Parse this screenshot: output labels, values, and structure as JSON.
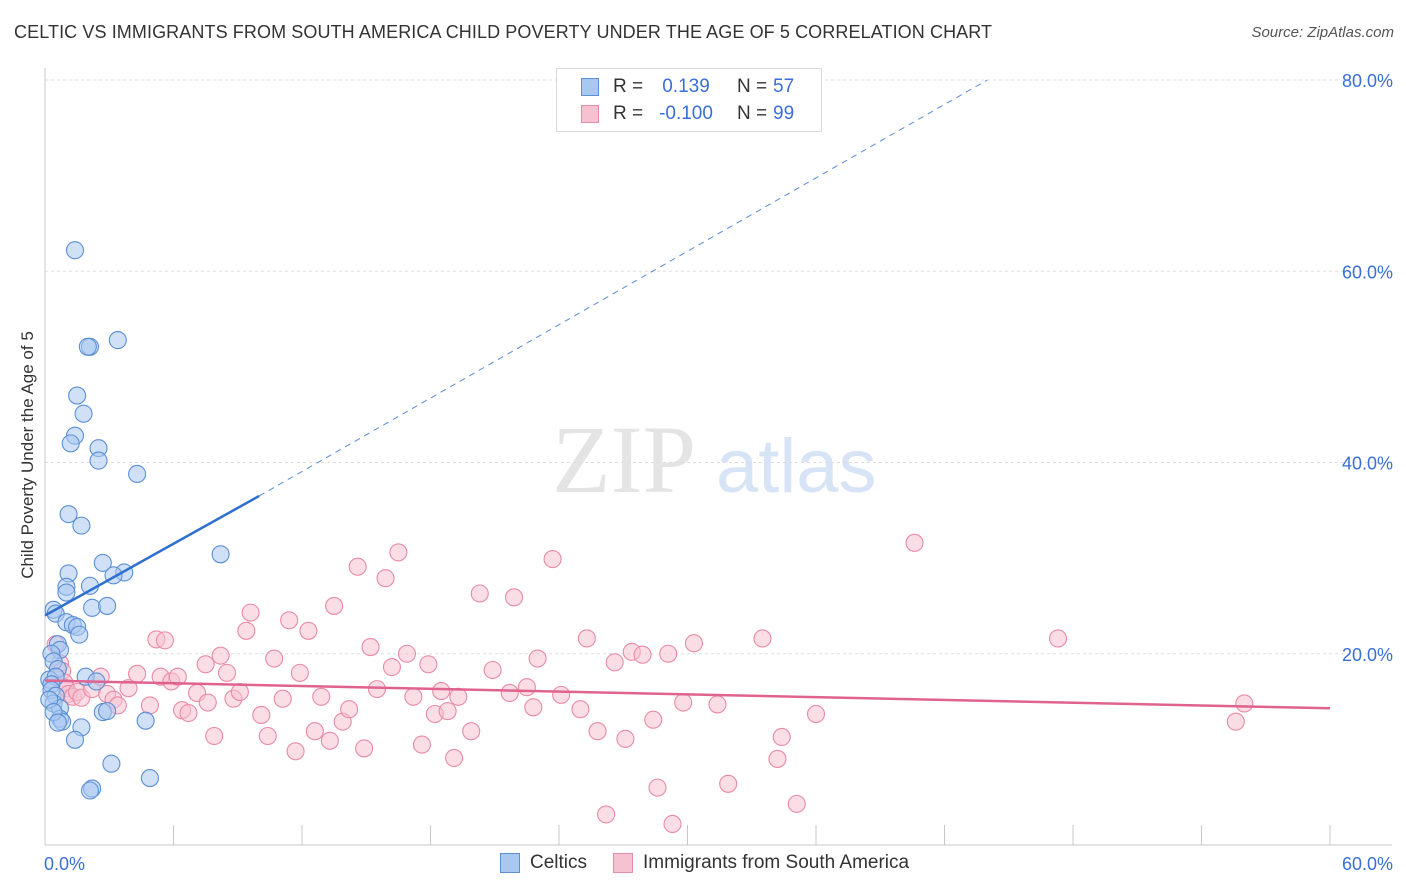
{
  "title": "CELTIC VS IMMIGRANTS FROM SOUTH AMERICA CHILD POVERTY UNDER THE AGE OF 5 CORRELATION CHART",
  "source": "Source: ZipAtlas.com",
  "watermark": {
    "zip": "ZIP",
    "atlas": "atlas"
  },
  "legend": {
    "rows": [
      {
        "r_label": "R =",
        "r_value": "0.139",
        "n_label": "N =",
        "n_value": "57"
      },
      {
        "r_label": "R =",
        "r_value": "-0.100",
        "n_label": "N =",
        "n_value": "99"
      }
    ]
  },
  "bottom_legend": [
    "Celtics",
    "Immigrants from South America"
  ],
  "colors": {
    "celtics_fill": "#a9c8f0",
    "celtics_stroke": "#5b8fd6",
    "celtics_line": "#2f6fd0",
    "immigrants_fill": "#f6c1d0",
    "immigrants_stroke": "#e98aa6",
    "immigrants_line": "#e0628f",
    "tick_label": "#3a6fd8",
    "grid": "#dddddd"
  },
  "chart_data": {
    "type": "scatter",
    "title": "CELTIC VS IMMIGRANTS FROM SOUTH AMERICA CHILD POVERTY UNDER THE AGE OF 5 CORRELATION CHART",
    "xlabel": "",
    "ylabel": "Child Poverty Under the Age of 5",
    "xlim": [
      0,
      60
    ],
    "ylim": [
      0,
      80
    ],
    "x_tick_labels": [
      "0.0%",
      "60.0%"
    ],
    "y_tick_labels": [
      "20.0%",
      "40.0%",
      "60.0%",
      "80.0%"
    ],
    "y_ticks": [
      20,
      40,
      60,
      80
    ],
    "grid": true,
    "legend_position": "top-center",
    "series": [
      {
        "name": "Celtics",
        "r": 0.139,
        "n": 57,
        "trend": {
          "x": [
            0.0,
            10.0
          ],
          "y": [
            24.0,
            36.5
          ],
          "dashed_to": {
            "x": 44.0,
            "y": 80.0
          }
        },
        "points": [
          [
            1.4,
            62.2
          ],
          [
            2.1,
            52.1
          ],
          [
            2.0,
            52.1
          ],
          [
            3.4,
            52.8
          ],
          [
            1.5,
            47.0
          ],
          [
            1.8,
            45.1
          ],
          [
            1.4,
            42.8
          ],
          [
            1.2,
            42.0
          ],
          [
            2.5,
            41.5
          ],
          [
            2.5,
            40.2
          ],
          [
            4.3,
            38.8
          ],
          [
            1.1,
            34.6
          ],
          [
            1.7,
            33.4
          ],
          [
            8.2,
            30.4
          ],
          [
            2.7,
            29.5
          ],
          [
            3.7,
            28.5
          ],
          [
            3.2,
            28.2
          ],
          [
            1.1,
            28.4
          ],
          [
            1.0,
            27.0
          ],
          [
            2.1,
            27.1
          ],
          [
            1.0,
            26.4
          ],
          [
            0.4,
            24.6
          ],
          [
            2.2,
            24.8
          ],
          [
            2.9,
            25.0
          ],
          [
            0.5,
            24.2
          ],
          [
            1.0,
            23.3
          ],
          [
            1.3,
            23.0
          ],
          [
            1.5,
            22.8
          ],
          [
            1.6,
            22.0
          ],
          [
            0.6,
            21.0
          ],
          [
            0.7,
            20.4
          ],
          [
            0.3,
            20.0
          ],
          [
            0.4,
            19.2
          ],
          [
            0.6,
            18.4
          ],
          [
            0.2,
            17.3
          ],
          [
            0.5,
            17.6
          ],
          [
            0.3,
            16.8
          ],
          [
            0.3,
            16.2
          ],
          [
            0.5,
            15.6
          ],
          [
            0.4,
            14.8
          ],
          [
            0.7,
            14.3
          ],
          [
            0.7,
            13.2
          ],
          [
            0.8,
            12.9
          ],
          [
            1.7,
            12.3
          ],
          [
            1.9,
            17.6
          ],
          [
            2.4,
            17.1
          ],
          [
            2.7,
            13.9
          ],
          [
            2.9,
            14.0
          ],
          [
            4.7,
            13.0
          ],
          [
            1.4,
            11.0
          ],
          [
            3.1,
            8.5
          ],
          [
            4.9,
            7.0
          ],
          [
            2.2,
            5.9
          ],
          [
            2.1,
            5.7
          ],
          [
            0.2,
            15.2
          ],
          [
            0.4,
            13.9
          ],
          [
            0.6,
            12.8
          ]
        ]
      },
      {
        "name": "Immigrants from South America",
        "r": -0.1,
        "n": 99,
        "trend": {
          "x": [
            0.0,
            60.0
          ],
          "y": [
            17.2,
            14.3
          ]
        },
        "points": [
          [
            0.5,
            21.0
          ],
          [
            0.7,
            19.0
          ],
          [
            0.8,
            18.2
          ],
          [
            0.9,
            17.0
          ],
          [
            1.0,
            16.4
          ],
          [
            1.1,
            15.8
          ],
          [
            1.3,
            15.5
          ],
          [
            1.5,
            16.0
          ],
          [
            1.7,
            15.4
          ],
          [
            2.2,
            16.3
          ],
          [
            2.6,
            17.6
          ],
          [
            2.9,
            15.8
          ],
          [
            3.2,
            15.2
          ],
          [
            3.4,
            14.6
          ],
          [
            3.9,
            16.4
          ],
          [
            4.3,
            17.9
          ],
          [
            4.9,
            14.6
          ],
          [
            5.2,
            21.5
          ],
          [
            5.6,
            21.4
          ],
          [
            5.4,
            17.6
          ],
          [
            5.9,
            17.1
          ],
          [
            6.2,
            17.6
          ],
          [
            6.4,
            14.1
          ],
          [
            6.7,
            13.8
          ],
          [
            7.1,
            15.9
          ],
          [
            7.5,
            18.9
          ],
          [
            7.6,
            14.9
          ],
          [
            7.9,
            11.4
          ],
          [
            8.2,
            19.8
          ],
          [
            8.5,
            18.0
          ],
          [
            8.8,
            15.3
          ],
          [
            9.1,
            16.0
          ],
          [
            9.4,
            22.4
          ],
          [
            9.6,
            24.3
          ],
          [
            10.1,
            13.6
          ],
          [
            10.4,
            11.4
          ],
          [
            10.7,
            19.5
          ],
          [
            11.1,
            15.3
          ],
          [
            11.4,
            23.5
          ],
          [
            11.7,
            9.8
          ],
          [
            11.9,
            18.0
          ],
          [
            12.3,
            22.4
          ],
          [
            12.6,
            11.9
          ],
          [
            12.9,
            15.5
          ],
          [
            13.3,
            10.9
          ],
          [
            13.5,
            25.0
          ],
          [
            13.9,
            12.9
          ],
          [
            14.2,
            14.2
          ],
          [
            14.6,
            29.1
          ],
          [
            14.9,
            10.1
          ],
          [
            15.2,
            20.7
          ],
          [
            15.5,
            16.3
          ],
          [
            15.9,
            27.9
          ],
          [
            16.2,
            18.6
          ],
          [
            16.5,
            30.6
          ],
          [
            16.9,
            20.0
          ],
          [
            17.2,
            15.5
          ],
          [
            17.6,
            10.5
          ],
          [
            17.9,
            18.9
          ],
          [
            18.2,
            13.7
          ],
          [
            18.5,
            16.1
          ],
          [
            18.8,
            14.0
          ],
          [
            19.1,
            9.1
          ],
          [
            19.3,
            15.5
          ],
          [
            19.9,
            11.9
          ],
          [
            20.3,
            26.3
          ],
          [
            20.9,
            18.3
          ],
          [
            21.7,
            15.9
          ],
          [
            21.9,
            25.9
          ],
          [
            22.5,
            16.5
          ],
          [
            22.8,
            14.4
          ],
          [
            23.0,
            19.5
          ],
          [
            23.7,
            29.9
          ],
          [
            24.1,
            15.7
          ],
          [
            25.0,
            14.2
          ],
          [
            25.3,
            21.6
          ],
          [
            25.8,
            11.9
          ],
          [
            26.2,
            3.2
          ],
          [
            26.6,
            19.1
          ],
          [
            27.1,
            11.1
          ],
          [
            27.4,
            20.2
          ],
          [
            27.9,
            19.9
          ],
          [
            28.4,
            13.1
          ],
          [
            28.6,
            6.0
          ],
          [
            29.1,
            20.0
          ],
          [
            29.3,
            2.2
          ],
          [
            29.8,
            14.9
          ],
          [
            30.3,
            21.1
          ],
          [
            31.4,
            14.7
          ],
          [
            31.9,
            6.4
          ],
          [
            33.5,
            21.6
          ],
          [
            34.2,
            9.0
          ],
          [
            34.4,
            11.3
          ],
          [
            35.1,
            4.3
          ],
          [
            36.0,
            13.7
          ],
          [
            40.6,
            31.6
          ],
          [
            47.3,
            21.6
          ],
          [
            55.6,
            12.9
          ],
          [
            56.0,
            14.8
          ]
        ]
      }
    ]
  }
}
